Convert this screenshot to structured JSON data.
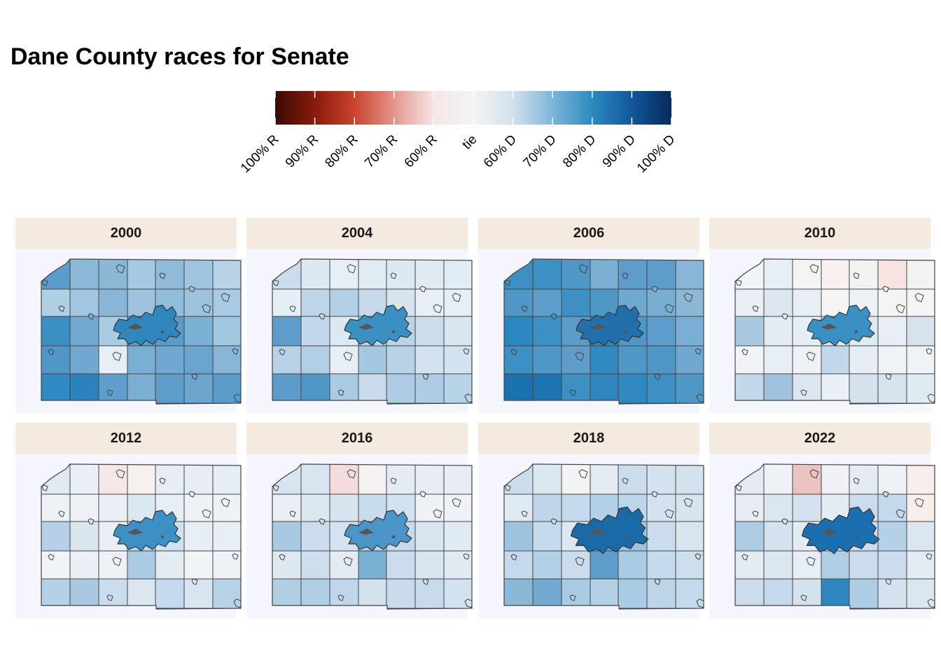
{
  "title": "Dane County races for Senate",
  "legend": {
    "labels": [
      "100% R",
      "90% R",
      "80% R",
      "70% R",
      "60% R",
      "tie",
      "60% D",
      "70% D",
      "80% D",
      "90% D",
      "100% D"
    ],
    "colors": [
      "#3a0a06",
      "#8a1a0a",
      "#c9442e",
      "#e4958b",
      "#f5e6e5",
      "#f4f4f4",
      "#d3e1ee",
      "#7db5d9",
      "#2c8abf",
      "#11579a",
      "#062a5a"
    ]
  },
  "panels": [
    {
      "year": "2000",
      "city_color": "#2f86bd",
      "tiles": [
        [
          "#5b9ccb",
          "#8db9d9",
          "#8cb8d8",
          "#a6c9e2",
          "#8fbad9",
          "#9fc4e0",
          "#b8d3e8"
        ],
        [
          "#b0cee4",
          "#a2c6e1",
          "#89b6d7",
          "#9cc2de",
          "#92bcdb",
          "#9cc2de",
          "#a8cae2"
        ],
        [
          "#3a8fc3",
          "#72a9d1",
          "#a9cbe3",
          "#5f9ecc",
          "#5a9bca",
          "#7ab0d4",
          "#a1c6e0"
        ],
        [
          "#4f97c7",
          "#6fa8d0",
          "#e6eef6",
          "#79afd4",
          "#6fa8d0",
          "#6aa5cf",
          "#88b6d8"
        ],
        [
          "#3189c1",
          "#2b82bd",
          "#5f9ecc",
          "#79afd4",
          "#5e9dcb",
          "#6ca6cf",
          "#5a9bca"
        ]
      ]
    },
    {
      "year": "2004",
      "city_color": "#3a8fc3",
      "tiles": [
        [
          "#cadced",
          "#dde9f2",
          "#e6eef6",
          "#e0ebf4",
          "#dde9f2",
          "#dfeaf3",
          "#e2ecf4"
        ],
        [
          "#e5eef5",
          "#bcd5e9",
          "#b3d0e6",
          "#c5d9eb",
          "#d6e4f0",
          "#e8f0f6",
          "#e6eef6"
        ],
        [
          "#5e9dcb",
          "#c3d8ea",
          "#dce8f2",
          "#bed6ea",
          "#b9d3e8",
          "#cbdded",
          "#d8e6f1"
        ],
        [
          "#b7d2e8",
          "#b2cfe5",
          "#e8f0f6",
          "#a4c7e1",
          "#b8d3e8",
          "#d3e2ef",
          "#d2e2ef"
        ],
        [
          "#5b9ccb",
          "#4f97c7",
          "#a9cbe3",
          "#c9dcec",
          "#aecde4",
          "#aecde4",
          "#b7d3e8"
        ]
      ]
    },
    {
      "year": "2006",
      "city_color": "#236fab",
      "tiles": [
        [
          "#3d90c4",
          "#3d90c4",
          "#4f97c7",
          "#7ab0d4",
          "#5e9dcb",
          "#5e9dcb",
          "#88b6d8"
        ],
        [
          "#4f97c7",
          "#5e9dcb",
          "#3d90c4",
          "#4f97c7",
          "#6fa8d0",
          "#78aed3",
          "#8cb8d8"
        ],
        [
          "#2a87c0",
          "#3d90c4",
          "#5a9bca",
          "#2f86bd",
          "#4f97c7",
          "#5e9dcb",
          "#79afd4"
        ],
        [
          "#3d90c4",
          "#4f97c7",
          "#5e9dcb",
          "#3189c1",
          "#4f97c7",
          "#4f97c7",
          "#6fa8d0"
        ],
        [
          "#1c72ae",
          "#1e74af",
          "#3d90c4",
          "#2f86bd",
          "#3189c1",
          "#3d90c4",
          "#4f97c7"
        ]
      ]
    },
    {
      "year": "2010",
      "city_color": "#3a8fc3",
      "tiles": [
        [
          "#f0f3f7",
          "#e8eef5",
          "#f6f4f3",
          "#f9f1f0",
          "#f3f3f4",
          "#f6e3e2",
          "#f3f3f4"
        ],
        [
          "#e9eff5",
          "#dce7f1",
          "#e7eef5",
          "#f4f4f5",
          "#eef2f6",
          "#f4f4f5",
          "#f4f4f5"
        ],
        [
          "#aac9e1",
          "#e3ebf3",
          "#e6eef5",
          "#dde8f1",
          "#e0eaf2",
          "#e7eef5",
          "#d6e3ef"
        ],
        [
          "#f1f3f6",
          "#e8eef5",
          "#eef2f6",
          "#c2d7ea",
          "#e6edf4",
          "#eff3f6",
          "#f0f3f6"
        ],
        [
          "#c3d8ea",
          "#9fc3df",
          "#dbe6f0",
          "#eaf0f5",
          "#d4e2ee",
          "#d6e3ef",
          "#e0eaf2"
        ]
      ]
    },
    {
      "year": "2012",
      "city_color": "#3d90c4",
      "tiles": [
        [
          "#dfe9f2",
          "#e9eff5",
          "#f4e7e6",
          "#f6f0ef",
          "#e6edf4",
          "#e6edf4",
          "#e6edf4"
        ],
        [
          "#eef2f6",
          "#eef2f6",
          "#e9eff5",
          "#dce8f1",
          "#e8eef5",
          "#eef2f6",
          "#eef2f6"
        ],
        [
          "#b6d1e7",
          "#d9e6f0",
          "#e9eff5",
          "#c4d9eb",
          "#d1e1ee",
          "#e8eef5",
          "#e8eef5"
        ],
        [
          "#f1f4f7",
          "#eaf0f5",
          "#edf1f6",
          "#a9cbe3",
          "#e4ecf3",
          "#f1f4f7",
          "#eef2f6"
        ],
        [
          "#b6d1e7",
          "#aac9e1",
          "#cadced",
          "#dbe6f0",
          "#c4d9eb",
          "#d9e5f0",
          "#b7d2e8"
        ]
      ]
    },
    {
      "year": "2016",
      "city_color": "#4a94c7",
      "tiles": [
        [
          "#d8e5f0",
          "#d8e5f0",
          "#f3dcda",
          "#f5f1f1",
          "#e3ebf3",
          "#e6edf4",
          "#e6edf4"
        ],
        [
          "#e9eff5",
          "#dce7f1",
          "#d6e4f0",
          "#c9dcec",
          "#d3e2ef",
          "#eef2f6",
          "#eef2f6"
        ],
        [
          "#a7c9e2",
          "#cadced",
          "#d4e3ef",
          "#b5d1e7",
          "#c6daeb",
          "#d8e5f0",
          "#e0eaf2"
        ],
        [
          "#dde8f1",
          "#cddfed",
          "#e3ebf3",
          "#7ab0d4",
          "#cadced",
          "#d8e5f0",
          "#e0eaf2"
        ],
        [
          "#b0cee4",
          "#b0cee4",
          "#c0d6ea",
          "#d4e2ef",
          "#c9dcec",
          "#c8dbec",
          "#d3e2ef"
        ]
      ]
    },
    {
      "year": "2018",
      "city_color": "#1a6aa8",
      "tiles": [
        [
          "#cbdced",
          "#dce8f1",
          "#f3f3f4",
          "#e3ebf3",
          "#cbdced",
          "#d4e2ef",
          "#d4e2ef"
        ],
        [
          "#e0eaf2",
          "#bfd6ea",
          "#c4d9eb",
          "#b3d0e6",
          "#bcd5e9",
          "#d4e2ef",
          "#d6e4f0"
        ],
        [
          "#9ec3df",
          "#c4d9eb",
          "#dce8f1",
          "#6aa5cf",
          "#9ec3df",
          "#cbdced",
          "#d8e5f0"
        ],
        [
          "#c4d9eb",
          "#b3d0e6",
          "#cadced",
          "#5e9dcb",
          "#a9cbe3",
          "#c4d9eb",
          "#cddfed"
        ],
        [
          "#8cb8d8",
          "#70a9d1",
          "#a9cbe3",
          "#b3d0e6",
          "#a9cbe3",
          "#bcd5e9",
          "#c4d9eb"
        ]
      ]
    },
    {
      "year": "2022",
      "city_color": "#1c6fae",
      "tiles": [
        [
          "#e3ebf3",
          "#eef2f6",
          "#ebc3c0",
          "#eff1f4",
          "#e3ebf3",
          "#eef2f6",
          "#f6eeed"
        ],
        [
          "#e6edf4",
          "#dbe6f0",
          "#d4e2ef",
          "#e3ebf3",
          "#cadced",
          "#c4d9eb",
          "#f6eeed"
        ],
        [
          "#aecde4",
          "#d4e2ef",
          "#e3ebf3",
          "#bcd5e9",
          "#cbdced",
          "#b5d1e7",
          "#dbe6f0"
        ],
        [
          "#e3ebf3",
          "#dbe6f0",
          "#e8eef5",
          "#b0cee4",
          "#cbdced",
          "#cbdced",
          "#e3ebf3"
        ],
        [
          "#cbdced",
          "#c4d9eb",
          "#d4e2ef",
          "#2f86bd",
          "#aecde4",
          "#d4e2ef",
          "#dbe6f0"
        ]
      ]
    }
  ]
}
